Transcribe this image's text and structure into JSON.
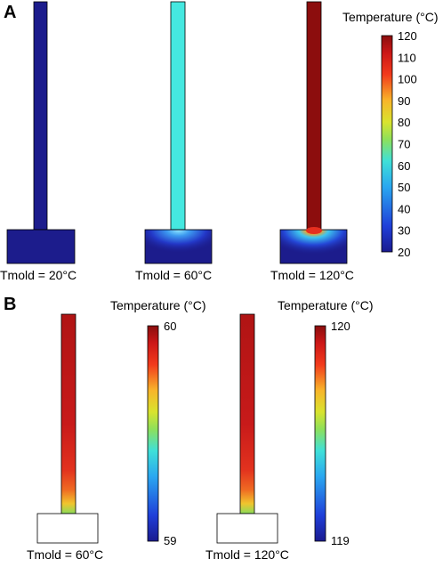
{
  "panel_a": {
    "letter": "A",
    "colorbar": {
      "title": "Temperature (°C)",
      "min": 20,
      "max": 120,
      "ticks": [
        "120",
        "110",
        "100",
        "90",
        "80",
        "70",
        "60",
        "50",
        "40",
        "30",
        "20"
      ]
    },
    "cases": [
      {
        "caption": "Tmold = 20°C"
      },
      {
        "caption": "Tmold = 60°C"
      },
      {
        "caption": "Tmold = 120°C"
      }
    ]
  },
  "panel_b": {
    "letter": "B",
    "plots": [
      {
        "caption": "Tmold = 60°C",
        "colorbar_title": "Temperature (°C)",
        "top_label": "60",
        "bottom_label": "59"
      },
      {
        "caption": "Tmold = 120°C",
        "colorbar_title": "Temperature (°C)",
        "top_label": "120",
        "bottom_label": "119"
      }
    ]
  },
  "colors": {
    "cold": "#1c1c8c",
    "cyan": "#45e8e0",
    "hot": "#8c0d0d",
    "outline": "#000000"
  }
}
